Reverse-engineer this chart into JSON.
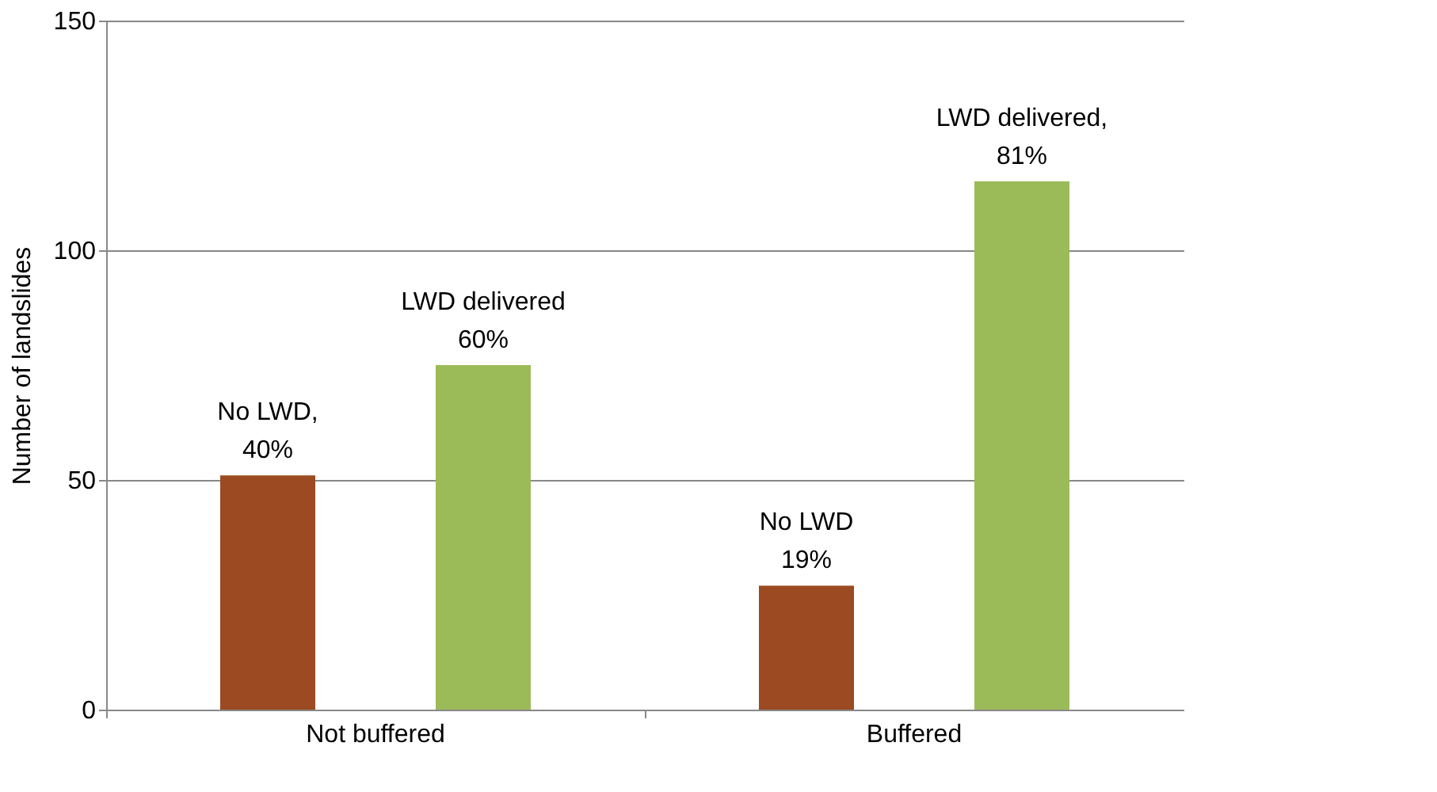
{
  "chart_data": {
    "type": "bar",
    "ylabel": "Number of landslides",
    "categories": [
      "Not buffered",
      "Buffered"
    ],
    "series": [
      {
        "color": "#9c4a22",
        "values": [
          51,
          27
        ]
      },
      {
        "color": "#9bbb59",
        "values": [
          75,
          115
        ]
      }
    ],
    "ylim": [
      0,
      150
    ],
    "yticks": [
      0,
      50,
      100,
      150
    ],
    "grid": "y",
    "legend": false,
    "annotations": [
      "No LWD,\n40%",
      "LWD delivered\n60%",
      "No LWD\n19%",
      "LWD delivered,\n81%"
    ]
  }
}
